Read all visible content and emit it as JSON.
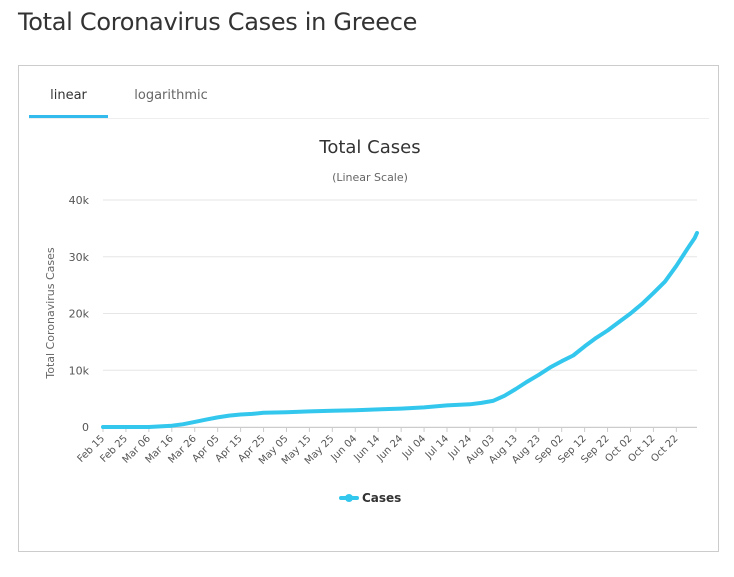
{
  "page": {
    "title": "Total Coronavirus Cases in Greece"
  },
  "tabs": [
    {
      "label": "linear",
      "active": true
    },
    {
      "label": "logarithmic",
      "active": false
    }
  ],
  "colors": {
    "series": "#33c7ee",
    "tab_active": "#33bbee",
    "grid": "#e6e6e6"
  },
  "chart_data": {
    "type": "line",
    "title": "Total Cases",
    "subtitle": "(Linear Scale)",
    "ylabel": "Total Coronavirus Cases",
    "xlabel": "",
    "ylim": [
      0,
      40000
    ],
    "yticks": [
      {
        "v": 0,
        "label": "0"
      },
      {
        "v": 10000,
        "label": "10k"
      },
      {
        "v": 20000,
        "label": "20k"
      },
      {
        "v": 30000,
        "label": "30k"
      },
      {
        "v": 40000,
        "label": "40k"
      }
    ],
    "xticks": [
      "Feb 15",
      "Feb 25",
      "Mar 06",
      "Mar 16",
      "Mar 26",
      "Apr 05",
      "Apr 15",
      "Apr 25",
      "May 05",
      "May 15",
      "May 25",
      "Jun 04",
      "Jun 14",
      "Jun 24",
      "Jul 04",
      "Jul 14",
      "Jul 24",
      "Aug 03",
      "Aug 13",
      "Aug 23",
      "Sep 02",
      "Sep 12",
      "Sep 22",
      "Oct 02",
      "Oct 12",
      "Oct 22"
    ],
    "grid": true,
    "legend": "bottom-center",
    "series": [
      {
        "name": "Cases",
        "x": [
          "Feb 15",
          "Feb 25",
          "Mar 06",
          "Mar 16",
          "Mar 21",
          "Mar 26",
          "Mar 31",
          "Apr 05",
          "Apr 10",
          "Apr 15",
          "Apr 20",
          "Apr 25",
          "May 05",
          "May 15",
          "May 25",
          "Jun 04",
          "Jun 14",
          "Jun 24",
          "Jul 04",
          "Jul 14",
          "Jul 24",
          "Jul 29",
          "Aug 03",
          "Aug 08",
          "Aug 13",
          "Aug 18",
          "Aug 23",
          "Aug 28",
          "Sep 02",
          "Sep 07",
          "Sep 12",
          "Sep 17",
          "Sep 22",
          "Sep 27",
          "Oct 02",
          "Oct 07",
          "Oct 12",
          "Oct 17",
          "Oct 22",
          "Oct 27",
          "Oct 30",
          "Oct 31"
        ],
        "values": [
          0,
          0,
          7,
          230,
          500,
          890,
          1300,
          1700,
          2000,
          2200,
          2300,
          2500,
          2600,
          2750,
          2880,
          2950,
          3100,
          3250,
          3450,
          3800,
          4000,
          4250,
          4600,
          5500,
          6700,
          8000,
          9200,
          10500,
          11600,
          12600,
          14200,
          15700,
          17000,
          18500,
          20000,
          21700,
          23600,
          25600,
          28400,
          31500,
          33300,
          34200
        ]
      }
    ]
  }
}
